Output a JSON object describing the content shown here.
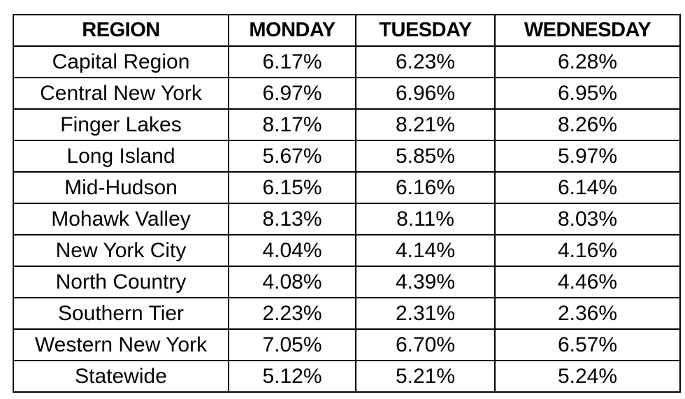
{
  "chart_data": {
    "type": "table",
    "columns": [
      "REGION",
      "MONDAY",
      "TUESDAY",
      "WEDNESDAY"
    ],
    "rows": [
      [
        "Capital Region",
        "6.17%",
        "6.23%",
        "6.28%"
      ],
      [
        "Central New York",
        "6.97%",
        "6.96%",
        "6.95%"
      ],
      [
        "Finger Lakes",
        "8.17%",
        "8.21%",
        "8.26%"
      ],
      [
        "Long Island",
        "5.67%",
        "5.85%",
        "5.97%"
      ],
      [
        "Mid-Hudson",
        "6.15%",
        "6.16%",
        "6.14%"
      ],
      [
        "Mohawk Valley",
        "8.13%",
        "8.11%",
        "8.03%"
      ],
      [
        "New York City",
        "4.04%",
        "4.14%",
        "4.16%"
      ],
      [
        "North Country",
        "4.08%",
        "4.39%",
        "4.46%"
      ],
      [
        "Southern Tier",
        "2.23%",
        "2.31%",
        "2.36%"
      ],
      [
        "Western New York",
        "7.05%",
        "6.70%",
        "6.57%"
      ],
      [
        "Statewide",
        "5.12%",
        "5.21%",
        "5.24%"
      ]
    ]
  }
}
